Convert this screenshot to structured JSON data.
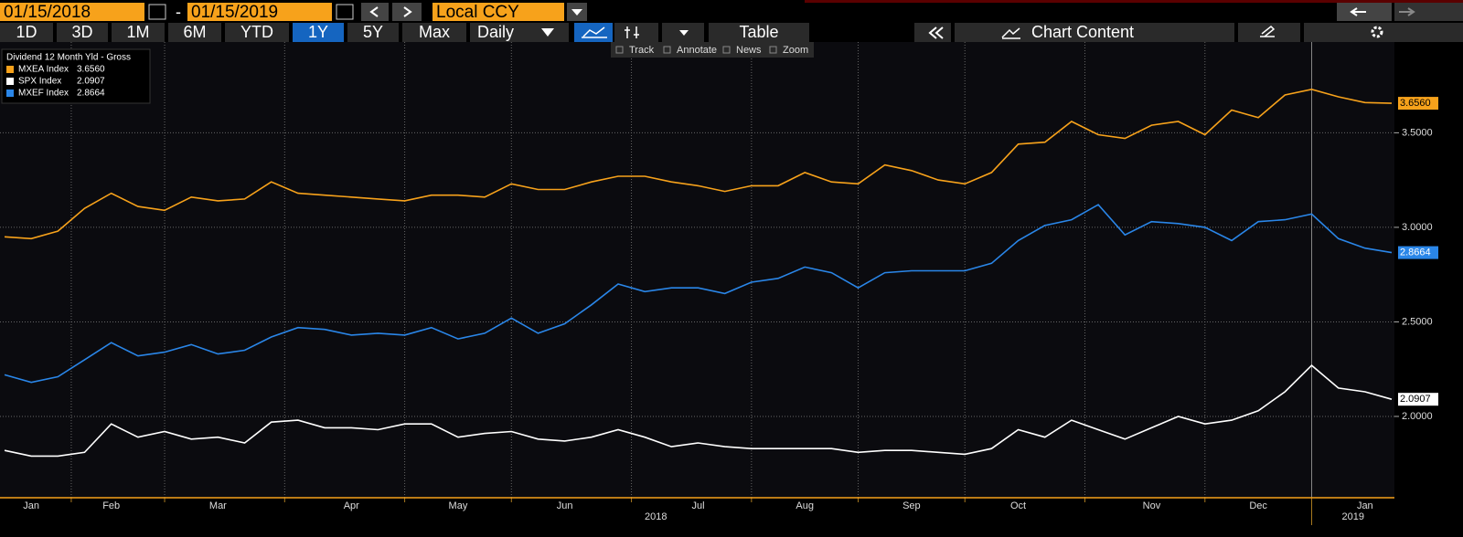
{
  "toolbar": {
    "start_date": "01/15/2018",
    "separator": "-",
    "end_date": "01/15/2019",
    "currency": "Local CCY",
    "periods": [
      "1D",
      "3D",
      "1M",
      "6M",
      "YTD",
      "1Y",
      "5Y",
      "Max"
    ],
    "active_period": "1Y",
    "frequency": "Daily",
    "table": "Table",
    "chart_content": "Chart Content",
    "tools": [
      "Track",
      "Annotate",
      "News",
      "Zoom"
    ]
  },
  "chart_data": {
    "type": "line",
    "legend_title": "Dividend 12 Month Yld - Gross",
    "categories": [
      null,
      "Jan",
      null,
      null,
      "Feb",
      null,
      null,
      null,
      "Mar",
      null,
      null,
      null,
      null,
      "Apr",
      null,
      null,
      null,
      "May",
      null,
      null,
      null,
      "Jun",
      null,
      null,
      null,
      null,
      "Jul",
      null,
      null,
      null,
      "Aug",
      null,
      null,
      null,
      "Sep",
      null,
      null,
      null,
      "Oct",
      null,
      null,
      null,
      null,
      "Nov",
      null,
      null,
      null,
      "Dec",
      null,
      null,
      null,
      "Jan",
      null
    ],
    "category_groups": [
      "2018",
      "2019"
    ],
    "ylim": [
      1.57,
      3.98
    ],
    "yticks": [
      {
        "value": 2,
        "label": "2.0000"
      },
      {
        "value": 2.5,
        "label": "2.5000"
      },
      {
        "value": 3,
        "label": "3.0000"
      },
      {
        "value": 3.5,
        "label": "3.5000"
      }
    ],
    "grid": true,
    "legend": "top-left",
    "series": [
      {
        "name": "MXEA Index",
        "color": "#f7a21b",
        "values": [
          2.95,
          2.94,
          2.98,
          3.1,
          3.18,
          3.11,
          3.09,
          3.16,
          3.14,
          3.15,
          3.24,
          3.18,
          3.17,
          3.16,
          3.15,
          3.14,
          3.17,
          3.17,
          3.16,
          3.23,
          3.2,
          3.2,
          3.24,
          3.27,
          3.27,
          3.24,
          3.22,
          3.19,
          3.22,
          3.22,
          3.29,
          3.24,
          3.23,
          3.33,
          3.3,
          3.25,
          3.23,
          3.29,
          3.44,
          3.45,
          3.56,
          3.49,
          3.47,
          3.54,
          3.56,
          3.49,
          3.62,
          3.58,
          3.7,
          3.73,
          3.69,
          3.66,
          3.656
        ],
        "value_labels": [
          null,
          null,
          null,
          null,
          null,
          null,
          null,
          null,
          null,
          null,
          null,
          null,
          null,
          null,
          null,
          null,
          null,
          null,
          null,
          null,
          null,
          null,
          null,
          null,
          null,
          null,
          null,
          null,
          null,
          null,
          null,
          null,
          null,
          null,
          null,
          null,
          null,
          null,
          null,
          null,
          null,
          null,
          null,
          null,
          null,
          null,
          null,
          null,
          null,
          null,
          null,
          null,
          "3.6560"
        ]
      },
      {
        "name": "SPX Index",
        "color": "#ffffff",
        "values": [
          1.82,
          1.79,
          1.79,
          1.81,
          1.96,
          1.89,
          1.92,
          1.88,
          1.89,
          1.86,
          1.97,
          1.98,
          1.94,
          1.94,
          1.93,
          1.96,
          1.96,
          1.89,
          1.91,
          1.92,
          1.88,
          1.87,
          1.89,
          1.93,
          1.89,
          1.84,
          1.86,
          1.84,
          1.83,
          1.83,
          1.83,
          1.83,
          1.81,
          1.82,
          1.82,
          1.81,
          1.8,
          1.83,
          1.93,
          1.89,
          1.98,
          1.93,
          1.88,
          1.94,
          2.0,
          1.96,
          1.98,
          2.03,
          2.13,
          2.27,
          2.15,
          2.13,
          2.0907
        ],
        "value_labels": [
          null,
          null,
          null,
          null,
          null,
          null,
          null,
          null,
          null,
          null,
          null,
          null,
          null,
          null,
          null,
          null,
          null,
          null,
          null,
          null,
          null,
          null,
          null,
          null,
          null,
          null,
          null,
          null,
          null,
          null,
          null,
          null,
          null,
          null,
          null,
          null,
          null,
          null,
          null,
          null,
          null,
          null,
          null,
          null,
          null,
          null,
          null,
          null,
          null,
          null,
          null,
          null,
          "2.0907"
        ]
      },
      {
        "name": "MXEF Index",
        "color": "#2a86e8",
        "values": [
          2.22,
          2.18,
          2.21,
          2.3,
          2.39,
          2.32,
          2.34,
          2.38,
          2.33,
          2.35,
          2.42,
          2.47,
          2.46,
          2.43,
          2.44,
          2.43,
          2.47,
          2.41,
          2.44,
          2.52,
          2.44,
          2.49,
          2.59,
          2.7,
          2.66,
          2.68,
          2.68,
          2.65,
          2.71,
          2.73,
          2.79,
          2.76,
          2.68,
          2.76,
          2.77,
          2.77,
          2.77,
          2.81,
          2.93,
          3.01,
          3.04,
          3.12,
          2.96,
          3.03,
          3.02,
          3.0,
          2.93,
          3.03,
          3.04,
          3.07,
          2.94,
          2.89,
          2.8664
        ],
        "value_labels": [
          null,
          null,
          null,
          null,
          null,
          null,
          null,
          null,
          null,
          null,
          null,
          null,
          null,
          null,
          null,
          null,
          null,
          null,
          null,
          null,
          null,
          null,
          null,
          null,
          null,
          null,
          null,
          null,
          null,
          null,
          null,
          null,
          null,
          null,
          null,
          null,
          null,
          null,
          null,
          null,
          null,
          null,
          null,
          null,
          null,
          null,
          null,
          null,
          null,
          null,
          null,
          null,
          "2.8664"
        ]
      }
    ]
  }
}
